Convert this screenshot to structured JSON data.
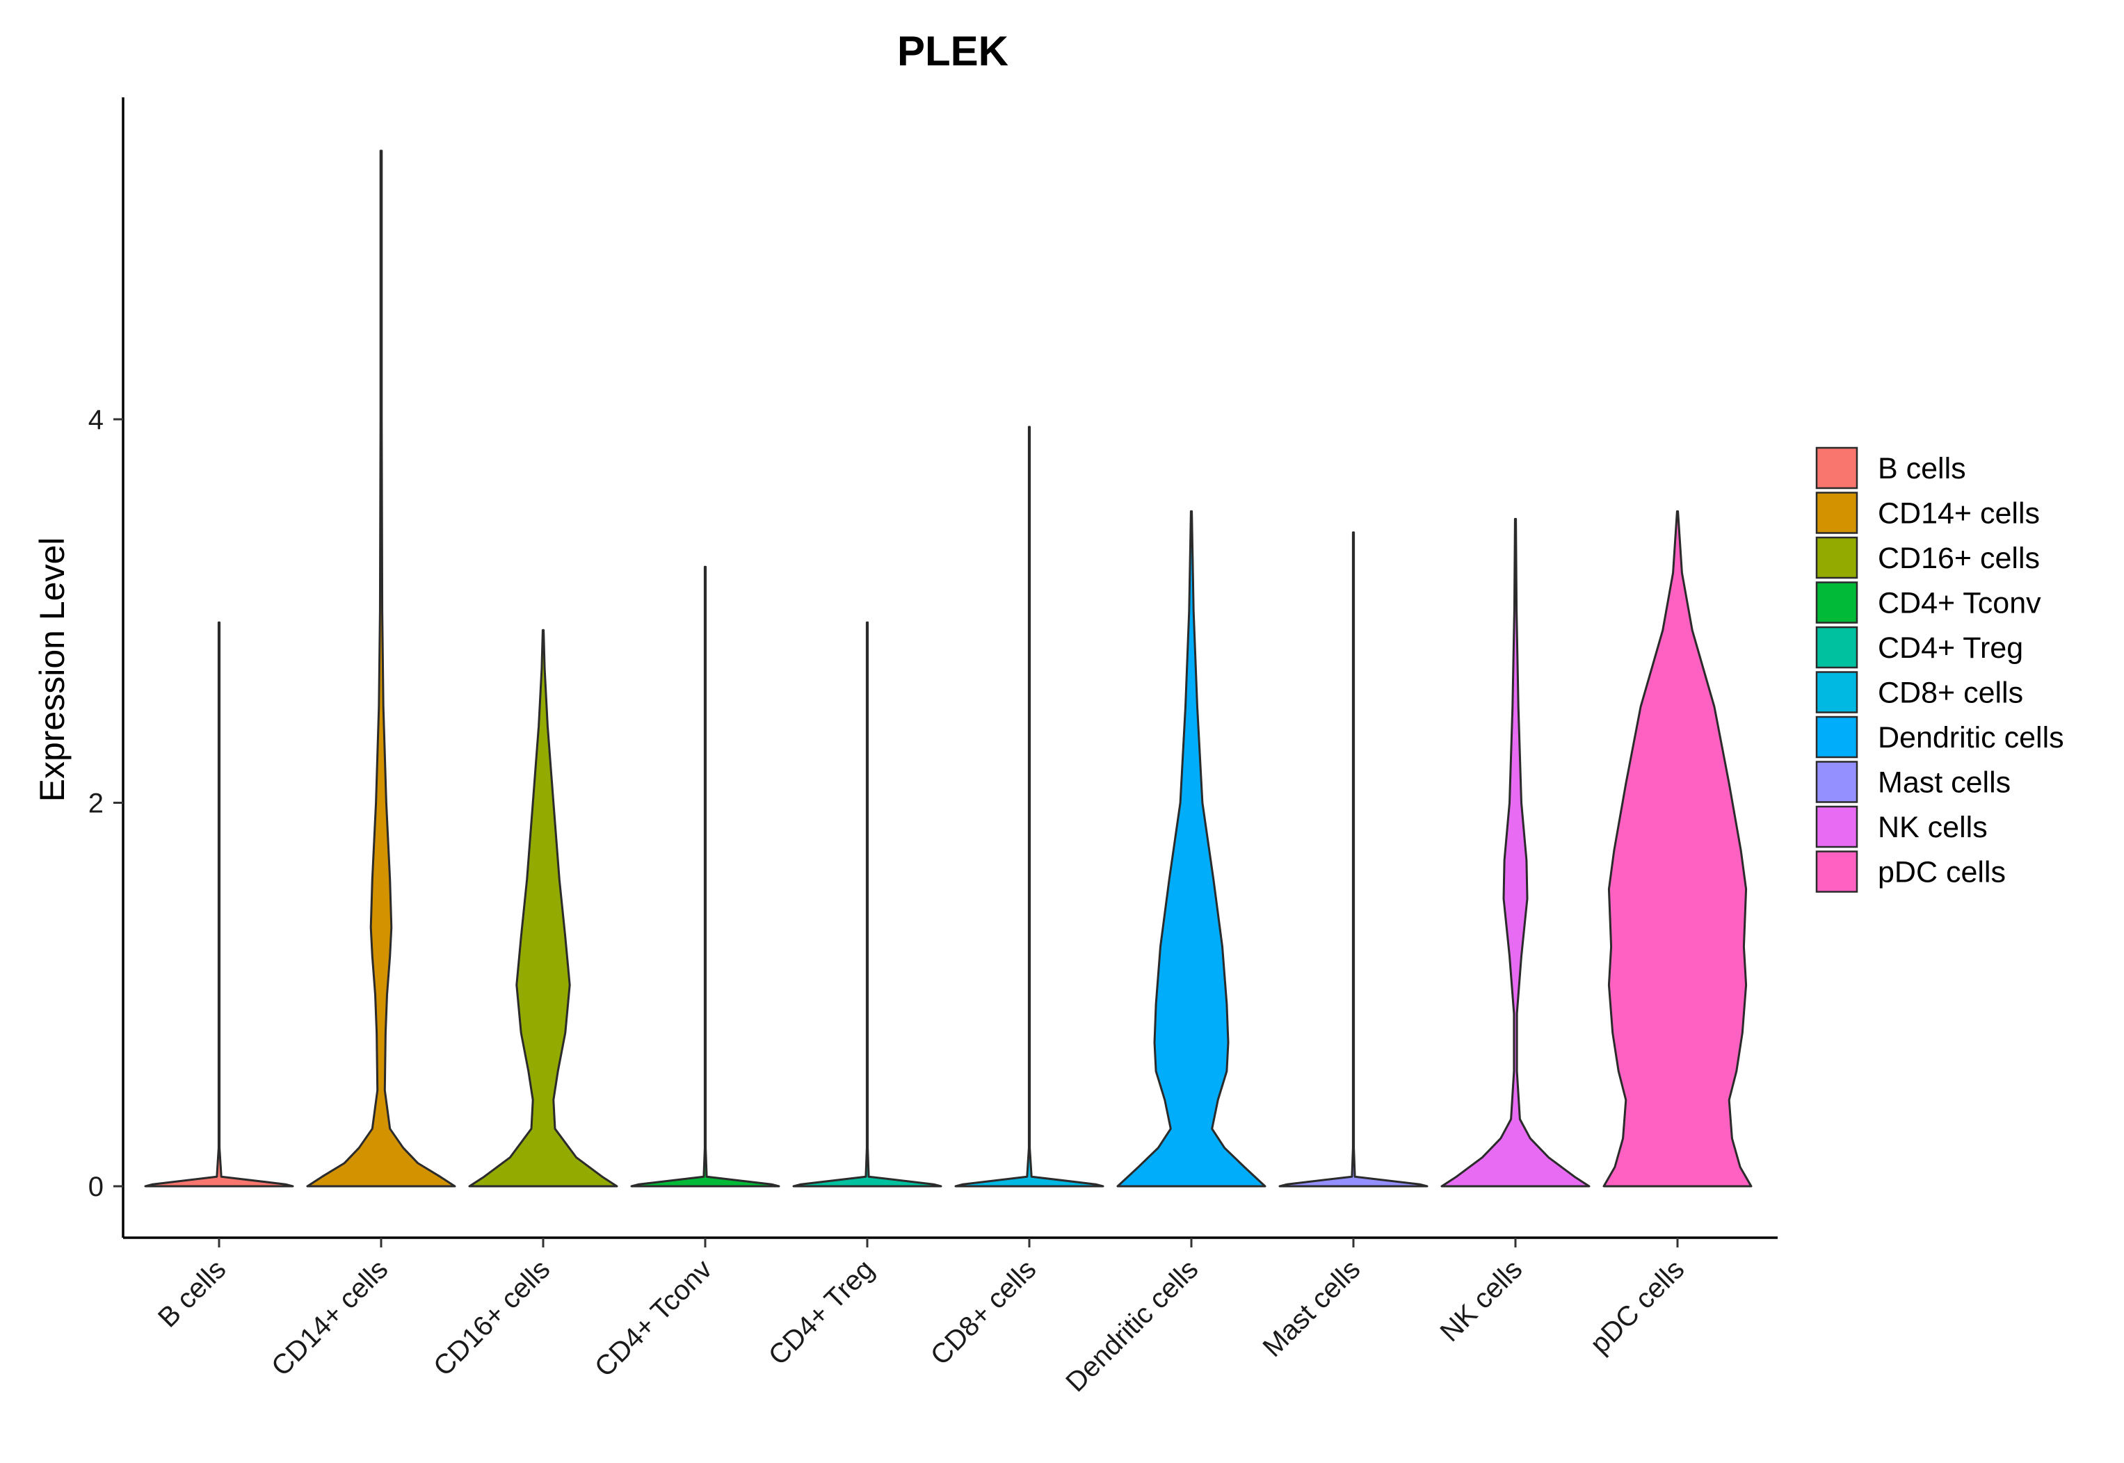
{
  "chart_data": {
    "type": "violin",
    "title": "PLEK",
    "xlabel": "",
    "ylabel": "Expression Level",
    "ylim": [
      -0.27,
      5.7
    ],
    "yticks": [
      0,
      2,
      4
    ],
    "grid": false,
    "legend_position": "right",
    "categories": [
      "B cells",
      "CD14+ cells",
      "CD16+ cells",
      "CD4+ Tconv",
      "CD4+ Treg",
      "CD8+ cells",
      "Dendritic cells",
      "Mast cells",
      "NK cells",
      "pDC cells"
    ],
    "colors": [
      "#F8766D",
      "#D39200",
      "#93AA00",
      "#00BA38",
      "#00C19F",
      "#00B9E3",
      "#00ADFA",
      "#9590FF",
      "#E76BF3",
      "#FF61C3"
    ],
    "max_values": [
      2.94,
      5.4,
      2.9,
      3.23,
      2.94,
      3.96,
      3.52,
      3.41,
      3.48,
      3.52
    ],
    "series": [
      {
        "name": "B cells",
        "max": 2.94,
        "profile": [
          [
            0,
            1.0
          ],
          [
            0.01,
            0.9
          ],
          [
            0.05,
            0.03
          ],
          [
            0.2,
            0.006
          ],
          [
            2.94,
            0.006
          ]
        ]
      },
      {
        "name": "CD14+ cells",
        "max": 5.4,
        "profile": [
          [
            0,
            1.0
          ],
          [
            0.05,
            0.8
          ],
          [
            0.12,
            0.5
          ],
          [
            0.2,
            0.3
          ],
          [
            0.3,
            0.12
          ],
          [
            0.5,
            0.05
          ],
          [
            0.8,
            0.06
          ],
          [
            1.0,
            0.08
          ],
          [
            1.2,
            0.12
          ],
          [
            1.35,
            0.14
          ],
          [
            1.6,
            0.12
          ],
          [
            2.0,
            0.07
          ],
          [
            2.5,
            0.03
          ],
          [
            3.0,
            0.015
          ],
          [
            4.0,
            0.008
          ],
          [
            5.4,
            0.008
          ]
        ]
      },
      {
        "name": "CD16+ cells",
        "max": 2.9,
        "profile": [
          [
            0,
            1.0
          ],
          [
            0.05,
            0.8
          ],
          [
            0.15,
            0.45
          ],
          [
            0.3,
            0.16
          ],
          [
            0.45,
            0.14
          ],
          [
            0.6,
            0.2
          ],
          [
            0.8,
            0.3
          ],
          [
            1.05,
            0.36
          ],
          [
            1.3,
            0.3
          ],
          [
            1.6,
            0.22
          ],
          [
            2.0,
            0.14
          ],
          [
            2.4,
            0.06
          ],
          [
            2.7,
            0.02
          ],
          [
            2.9,
            0.006
          ]
        ]
      },
      {
        "name": "CD4+ Tconv",
        "max": 3.23,
        "profile": [
          [
            0,
            1.0
          ],
          [
            0.01,
            0.9
          ],
          [
            0.05,
            0.02
          ],
          [
            0.2,
            0.006
          ],
          [
            3.23,
            0.006
          ]
        ]
      },
      {
        "name": "CD4+ Treg",
        "max": 2.94,
        "profile": [
          [
            0,
            1.0
          ],
          [
            0.01,
            0.9
          ],
          [
            0.05,
            0.02
          ],
          [
            0.2,
            0.006
          ],
          [
            2.94,
            0.006
          ]
        ]
      },
      {
        "name": "CD8+ cells",
        "max": 3.96,
        "profile": [
          [
            0,
            1.0
          ],
          [
            0.01,
            0.9
          ],
          [
            0.05,
            0.03
          ],
          [
            0.2,
            0.006
          ],
          [
            3.96,
            0.006
          ]
        ]
      },
      {
        "name": "Dendritic cells",
        "max": 3.52,
        "profile": [
          [
            0,
            1.0
          ],
          [
            0.1,
            0.72
          ],
          [
            0.2,
            0.45
          ],
          [
            0.3,
            0.28
          ],
          [
            0.45,
            0.36
          ],
          [
            0.6,
            0.48
          ],
          [
            0.75,
            0.5
          ],
          [
            0.95,
            0.48
          ],
          [
            1.25,
            0.42
          ],
          [
            1.6,
            0.3
          ],
          [
            2.0,
            0.15
          ],
          [
            2.5,
            0.08
          ],
          [
            3.0,
            0.03
          ],
          [
            3.52,
            0.006
          ]
        ]
      },
      {
        "name": "Mast cells",
        "max": 3.41,
        "profile": [
          [
            0,
            1.0
          ],
          [
            0.01,
            0.9
          ],
          [
            0.05,
            0.02
          ],
          [
            0.2,
            0.006
          ],
          [
            3.41,
            0.006
          ]
        ]
      },
      {
        "name": "NK cells",
        "max": 3.48,
        "profile": [
          [
            0,
            1.0
          ],
          [
            0.05,
            0.8
          ],
          [
            0.15,
            0.45
          ],
          [
            0.25,
            0.2
          ],
          [
            0.35,
            0.06
          ],
          [
            0.6,
            0.02
          ],
          [
            0.9,
            0.02
          ],
          [
            1.2,
            0.08
          ],
          [
            1.5,
            0.16
          ],
          [
            1.7,
            0.15
          ],
          [
            2.0,
            0.08
          ],
          [
            2.5,
            0.04
          ],
          [
            3.0,
            0.015
          ],
          [
            3.48,
            0.006
          ]
        ]
      },
      {
        "name": "pDC cells",
        "max": 3.52,
        "profile": [
          [
            0,
            1.0
          ],
          [
            0.1,
            0.85
          ],
          [
            0.25,
            0.74
          ],
          [
            0.45,
            0.7
          ],
          [
            0.6,
            0.8
          ],
          [
            0.8,
            0.88
          ],
          [
            1.05,
            0.93
          ],
          [
            1.25,
            0.9
          ],
          [
            1.55,
            0.93
          ],
          [
            1.75,
            0.86
          ],
          [
            2.1,
            0.7
          ],
          [
            2.5,
            0.5
          ],
          [
            2.9,
            0.2
          ],
          [
            3.2,
            0.06
          ],
          [
            3.52,
            0.006
          ]
        ]
      }
    ]
  }
}
